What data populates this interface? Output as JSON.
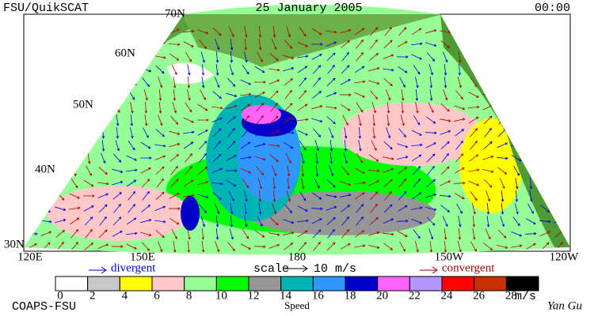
{
  "header": {
    "left": "FSU/QuikSCAT",
    "center": "25 January 2005",
    "right": "00:00"
  },
  "map": {
    "lat_labels": [
      "70N",
      "60N",
      "50N",
      "40N",
      "30N"
    ],
    "lon_labels": [
      "120E",
      "150E",
      "180",
      "150W",
      "120W"
    ]
  },
  "legend": {
    "divergent": "divergent",
    "scale": "scale",
    "scale_value": "10 m/s",
    "convergent": "convergent",
    "colors": [
      "#ffffff",
      "#c8c8c8",
      "#ffff00",
      "#ffc8c8",
      "#96ff96",
      "#00ff00",
      "#969696",
      "#00b4b4",
      "#3296ff",
      "#0000c8",
      "#ff64ff",
      "#b496ff",
      "#ff0000",
      "#c83200",
      "#000000"
    ],
    "ticks": [
      0,
      2,
      4,
      6,
      8,
      10,
      12,
      14,
      16,
      18,
      20,
      22,
      24,
      26,
      28
    ],
    "unit": "m/s",
    "title": "Speed"
  },
  "footer": {
    "left": "COAPS-FSU",
    "right": "Yan Gu"
  }
}
